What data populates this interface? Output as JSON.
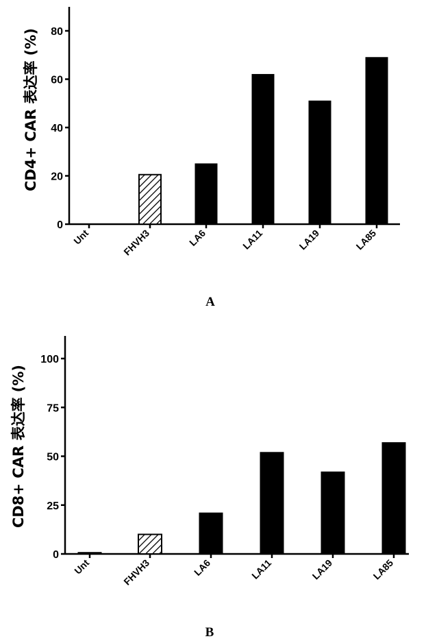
{
  "chart_data": [
    {
      "type": "bar",
      "panel_label": "A",
      "categories": [
        "Unt",
        "FHVH3",
        "LA6",
        "LA11",
        "LA19",
        "LA85"
      ],
      "values": [
        0,
        20.5,
        25,
        62,
        51,
        69
      ],
      "bar_styles": [
        "solid",
        "hatched",
        "solid",
        "solid",
        "solid",
        "solid"
      ],
      "ylabel": "CD4+ CAR 表达率 (%)",
      "xlabel": "",
      "ylim": [
        0,
        80
      ],
      "yticks": [
        0,
        20,
        40,
        60,
        80
      ],
      "grid": false
    },
    {
      "type": "bar",
      "panel_label": "B",
      "categories": [
        "Unt",
        "FHVH3",
        "LA6",
        "LA11",
        "LA19",
        "LA85"
      ],
      "values": [
        0.8,
        10,
        21,
        52,
        42,
        57
      ],
      "bar_styles": [
        "solid",
        "hatched",
        "solid",
        "solid",
        "solid",
        "solid"
      ],
      "ylabel": "CD8+ CAR 表达率 (%)",
      "xlabel": "",
      "ylim": [
        0,
        100
      ],
      "yticks": [
        0,
        25,
        50,
        75,
        100
      ],
      "grid": false
    }
  ],
  "colors": {
    "bar": "#000000",
    "hatch_fill": "#ffffff",
    "axis": "#000000"
  }
}
